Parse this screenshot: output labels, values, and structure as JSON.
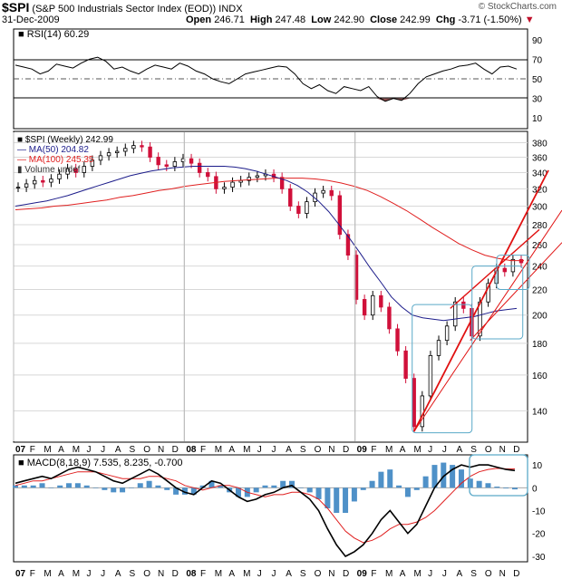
{
  "header": {
    "symbol": "$SPI",
    "name": "(S&P 500 Industrials Sector Index (EOD))",
    "exchange": "INDX",
    "brand": "© StockCharts.com",
    "date": "31-Dec-2009",
    "open_label": "Open",
    "open": "246.71",
    "high_label": "High",
    "high": "247.48",
    "low_label": "Low",
    "low": "242.90",
    "close_label": "Close",
    "close": "242.99",
    "chg_label": "Chg",
    "chg": "-3.71 (-1.50%)"
  },
  "colors": {
    "price_up": "#000000",
    "price_down": "#d0103a",
    "ma50": "#1c1c8a",
    "ma100": "#e02020",
    "trendline": "#e01010",
    "box": "#5aa9c8",
    "macd_hist": "#4f91c8",
    "rsi_fill": "#8a4b4b"
  },
  "chart_data": [
    {
      "type": "line",
      "title": "RSI(14) 60.29",
      "series": [
        {
          "name": "RSI(14)",
          "values": [
            64,
            62,
            60,
            55,
            58,
            65,
            63,
            61,
            66,
            70,
            72,
            68,
            60,
            62,
            58,
            55,
            60,
            64,
            62,
            60,
            66,
            63,
            58,
            55,
            50,
            47,
            45,
            50,
            55,
            57,
            59,
            61,
            63,
            62,
            55,
            45,
            40,
            44,
            38,
            35,
            42,
            40,
            38,
            42,
            32,
            27,
            30,
            28,
            35,
            45,
            52,
            55,
            58,
            60,
            63,
            64,
            66,
            60,
            55,
            62,
            63,
            60
          ]
        }
      ],
      "y_ticks": [
        "90",
        "70",
        "50",
        "30",
        "10"
      ],
      "ylim": [
        0,
        100
      ]
    },
    {
      "type": "line",
      "title": "$SPI (Weekly) 242.99",
      "y_scale": "log",
      "series": [
        {
          "name": "$SPI (Weekly) 242.99",
          "values": [
            322,
            326,
            330,
            328,
            332,
            338,
            345,
            340,
            348,
            356,
            362,
            366,
            368,
            372,
            376,
            374,
            360,
            350,
            348,
            354,
            358,
            352,
            340,
            335,
            320,
            322,
            328,
            330,
            334,
            336,
            338,
            334,
            320,
            300,
            292,
            305,
            315,
            318,
            312,
            270,
            250,
            212,
            200,
            215,
            206,
            190,
            175,
            158,
            132,
            148,
            172,
            182,
            192,
            210,
            205,
            185,
            210,
            225,
            238,
            235,
            246,
            243
          ]
        },
        {
          "name": "MA(50) 204.82",
          "values": [
            300,
            302,
            304,
            306,
            309,
            312,
            316,
            320,
            324,
            328,
            332,
            336,
            339,
            342,
            344,
            346,
            347,
            348,
            348,
            348,
            348,
            347,
            345,
            342,
            338,
            334,
            330,
            324,
            316,
            306,
            294,
            280,
            266,
            252,
            238,
            226,
            214,
            206,
            200,
            198,
            197,
            196,
            197,
            198,
            199,
            201,
            203,
            204,
            205
          ]
        },
        {
          "name": "MA(100) 245.35",
          "values": [
            296,
            297,
            298,
            300,
            301,
            303,
            305,
            307,
            310,
            312,
            315,
            318,
            320,
            323,
            325,
            327,
            329,
            330,
            331,
            332,
            333,
            333,
            333,
            332,
            330,
            327,
            323,
            318,
            311,
            303,
            295,
            286,
            277,
            269,
            261,
            255,
            250,
            247,
            245,
            245
          ]
        },
        {
          "name": "Volume undef",
          "values": []
        }
      ],
      "y_ticks": [
        "380",
        "360",
        "340",
        "320",
        "300",
        "280",
        "260",
        "240",
        "220",
        "200",
        "180",
        "160",
        "140"
      ]
    },
    {
      "type": "area",
      "title": "MACD(8,18,9) 7.535, 8.235, -0.700",
      "series": [
        {
          "name": "MACD(8,18,9) 7.535",
          "values": [
            2,
            3,
            4,
            5,
            4,
            6,
            8,
            9,
            8,
            7,
            5,
            3,
            2,
            4,
            6,
            8,
            6,
            3,
            0,
            -2,
            -3,
            0,
            3,
            2,
            -1,
            -4,
            -6,
            -5,
            -3,
            -2,
            0,
            1,
            -2,
            -5,
            -10,
            -18,
            -25,
            -30,
            -28,
            -25,
            -20,
            -14,
            -10,
            -15,
            -20,
            -16,
            -8,
            0,
            5,
            8,
            10,
            9,
            10,
            10,
            9,
            8,
            7.535
          ]
        },
        {
          "name": "8.235",
          "values": [
            1,
            2,
            3,
            3,
            4,
            5,
            6,
            7,
            7,
            7,
            6,
            5,
            4,
            4,
            4,
            5,
            5,
            4,
            3,
            1,
            0,
            -1,
            0,
            1,
            1,
            0,
            -2,
            -3,
            -4,
            -3,
            -3,
            -2,
            -2,
            -3,
            -5,
            -9,
            -14,
            -19,
            -22,
            -24,
            -23,
            -21,
            -18,
            -16,
            -16,
            -15,
            -13,
            -10,
            -6,
            -2,
            2,
            5,
            7,
            8,
            8.5,
            8.3,
            8.235
          ]
        },
        {
          "name": "-0.700",
          "values": [
            1,
            1,
            1,
            2,
            0,
            1,
            2,
            2,
            1,
            0,
            -1,
            -2,
            -2,
            0,
            2,
            3,
            1,
            -1,
            -3,
            -3,
            -3,
            1,
            3,
            1,
            -2,
            -4,
            -4,
            -2,
            1,
            1,
            3,
            3,
            0,
            -2,
            -5,
            -9,
            -11,
            -11,
            -6,
            -1,
            3,
            7,
            8,
            1,
            -4,
            -1,
            5,
            10,
            11,
            10,
            8,
            4,
            3,
            2,
            0.5,
            -0.3,
            -0.7
          ]
        }
      ],
      "y_ticks": [
        "10",
        "0",
        "-10",
        "-20",
        "-30"
      ],
      "ylim": [
        -32,
        14
      ]
    }
  ],
  "x_axis": {
    "ticks": [
      "07",
      "F",
      "M",
      "A",
      "M",
      "J",
      "J",
      "A",
      "S",
      "O",
      "N",
      "D",
      "08",
      "F",
      "M",
      "A",
      "M",
      "J",
      "J",
      "A",
      "S",
      "O",
      "N",
      "D",
      "09",
      "F",
      "M",
      "A",
      "M",
      "J",
      "J",
      "A",
      "S",
      "O",
      "N",
      "D"
    ],
    "bold": [
      "07",
      "08",
      "09"
    ]
  }
}
